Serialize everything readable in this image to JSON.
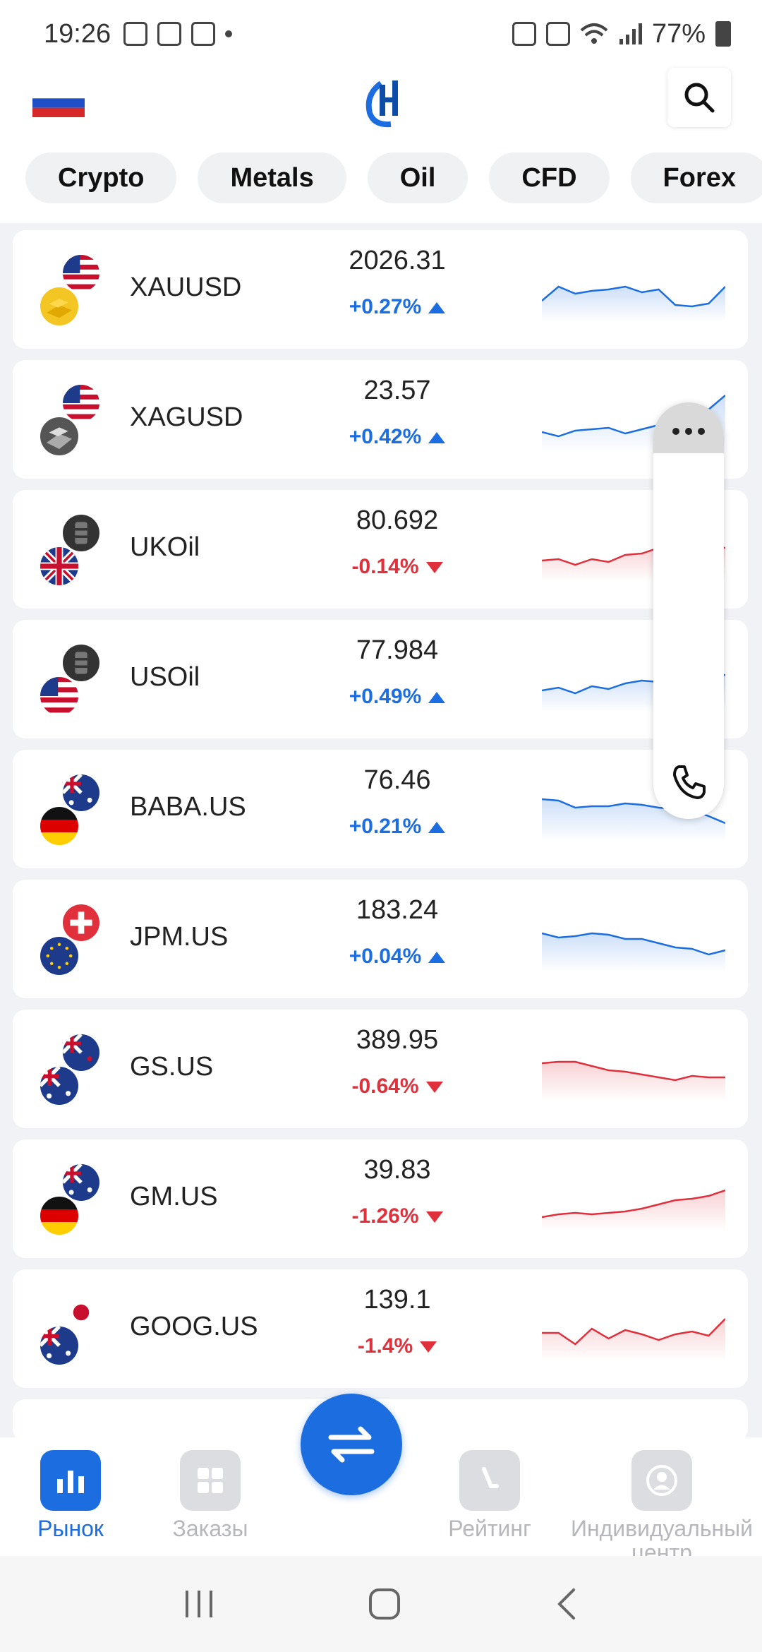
{
  "status_bar": {
    "time": "19:26",
    "battery": "77%"
  },
  "header": {
    "region_flag": "russia-flag",
    "logo": "app-logo",
    "search_icon": "search-icon"
  },
  "tabs": [
    {
      "label": "Crypto"
    },
    {
      "label": "Metals"
    },
    {
      "label": "Oil"
    },
    {
      "label": "CFD"
    },
    {
      "label": "Forex"
    }
  ],
  "colors": {
    "up": "#1c6ee0",
    "down": "#e0303c",
    "accent": "#1c6ee0"
  },
  "instruments": [
    {
      "symbol": "XAUUSD",
      "price": "2026.31",
      "change": "+0.27%",
      "direction": "up",
      "spark": [
        60,
        40,
        50,
        46,
        44,
        40,
        48,
        44,
        66,
        68,
        64,
        40
      ]
    },
    {
      "symbol": "XAGUSD",
      "price": "23.57",
      "change": "+0.42%",
      "direction": "up",
      "spark": [
        62,
        68,
        60,
        58,
        56,
        64,
        58,
        52,
        46,
        44,
        30,
        10
      ]
    },
    {
      "symbol": "UKOil",
      "price": "80.692",
      "change": "-0.14%",
      "direction": "down",
      "spark": [
        60,
        58,
        66,
        58,
        62,
        52,
        50,
        42,
        44,
        38,
        40,
        42
      ]
    },
    {
      "symbol": "USOil",
      "price": "77.984",
      "change": "+0.49%",
      "direction": "up",
      "spark": [
        60,
        56,
        64,
        54,
        58,
        50,
        46,
        48,
        42,
        44,
        40,
        38
      ]
    },
    {
      "symbol": "BABA.US",
      "price": "76.46",
      "change": "+0.21%",
      "direction": "up",
      "spark": [
        30,
        32,
        42,
        40,
        40,
        36,
        38,
        42,
        44,
        46,
        54,
        64
      ]
    },
    {
      "symbol": "JPM.US",
      "price": "183.24",
      "change": "+0.04%",
      "direction": "up",
      "spark": [
        36,
        42,
        40,
        36,
        38,
        44,
        44,
        50,
        56,
        58,
        66,
        60
      ]
    },
    {
      "symbol": "GS.US",
      "price": "389.95",
      "change": "-0.64%",
      "direction": "down",
      "spark": [
        36,
        34,
        34,
        40,
        46,
        48,
        52,
        56,
        60,
        54,
        56,
        56
      ]
    },
    {
      "symbol": "GM.US",
      "price": "39.83",
      "change": "-1.26%",
      "direction": "down",
      "spark": [
        70,
        66,
        64,
        66,
        64,
        62,
        58,
        52,
        46,
        44,
        40,
        32
      ]
    },
    {
      "symbol": "GOOG.US",
      "price": "139.1",
      "change": "-1.4%",
      "direction": "down",
      "spark": [
        50,
        50,
        66,
        44,
        58,
        46,
        52,
        60,
        52,
        48,
        54,
        30
      ]
    }
  ],
  "bottom_nav": [
    {
      "label": "Рынок",
      "icon": "bar-chart-icon",
      "active": true
    },
    {
      "label": "Заказы",
      "icon": "grid-icon",
      "active": false
    },
    {
      "label": "Рейтинг",
      "icon": "rank-icon",
      "active": false
    },
    {
      "label": "Индивидуальный центр",
      "icon": "user-icon",
      "active": false
    }
  ]
}
